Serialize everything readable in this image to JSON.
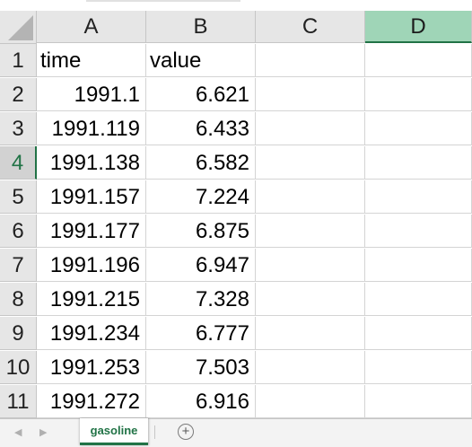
{
  "columns": [
    "A",
    "B",
    "C",
    "D"
  ],
  "active_column": "D",
  "active_row": "4",
  "rows": [
    {
      "num": "1",
      "a": "time",
      "b": "value"
    },
    {
      "num": "2",
      "a": "1991.1",
      "b": "6.621"
    },
    {
      "num": "3",
      "a": "1991.119",
      "b": "6.433"
    },
    {
      "num": "4",
      "a": "1991.138",
      "b": "6.582"
    },
    {
      "num": "5",
      "a": "1991.157",
      "b": "7.224"
    },
    {
      "num": "6",
      "a": "1991.177",
      "b": "6.875"
    },
    {
      "num": "7",
      "a": "1991.196",
      "b": "6.947"
    },
    {
      "num": "8",
      "a": "1991.215",
      "b": "7.328"
    },
    {
      "num": "9",
      "a": "1991.234",
      "b": "6.777"
    },
    {
      "num": "10",
      "a": "1991.253",
      "b": "7.503"
    },
    {
      "num": "11",
      "a": "1991.272",
      "b": "6.916"
    }
  ],
  "sheet_tabs": [
    {
      "label": "gasoline",
      "active": true
    }
  ],
  "icons": {
    "prev_sheet": "chevron-left-icon",
    "next_sheet": "chevron-right-icon",
    "add_sheet": "plus-circle-icon",
    "select_all": "select-all-triangle-icon"
  },
  "colors": {
    "accent": "#217346",
    "active_header_bg": "#9fd5b7",
    "header_bg": "#e6e6e6",
    "gridline": "#d4d4d4"
  }
}
